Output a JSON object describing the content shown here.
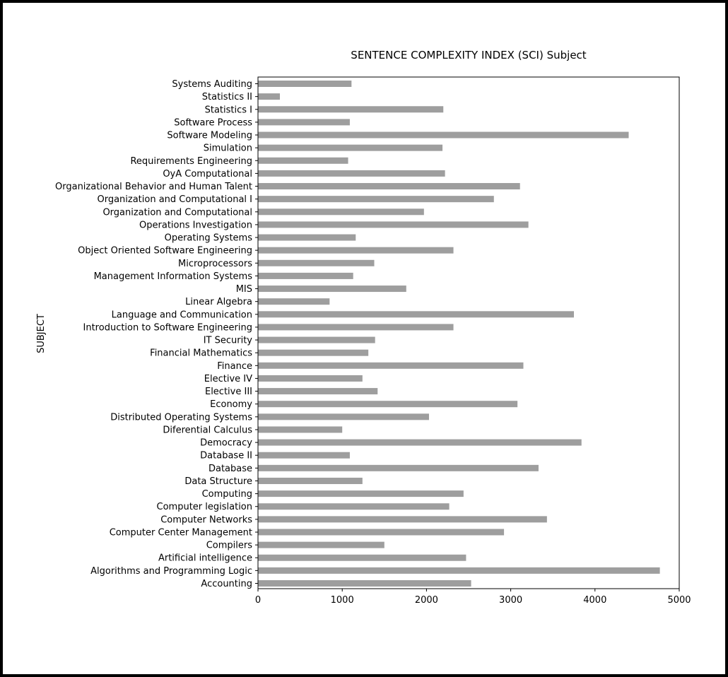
{
  "chart_data": {
    "type": "bar",
    "orientation": "horizontal",
    "title": "SENTENCE COMPLEXITY INDEX (SCI) Subject",
    "xlabel": "",
    "ylabel": "SUBJECT",
    "xlim": [
      0,
      5000
    ],
    "xticks": [
      0,
      1000,
      2000,
      3000,
      4000,
      5000
    ],
    "grid": false,
    "bar_color": "#9e9e9e",
    "categories": [
      "Accounting",
      "Algorithms and Programming Logic",
      "Artificial intelligence",
      "Compilers",
      "Computer Center Management",
      "Computer Networks",
      "Computer legislation",
      "Computing",
      "Data Structure",
      "Database",
      "Database II",
      "Democracy",
      "Diferential Calculus",
      "Distributed Operating Systems",
      "Economy",
      "Elective III",
      "Elective IV",
      "Finance",
      "Financial Mathematics",
      "IT Security",
      "Introduction to Software Engineering",
      "Language and Communication",
      "Linear Algebra",
      "MIS",
      "Management Information Systems",
      "Microprocessors",
      "Object Oriented Software Engineering",
      "Operating Systems",
      "Operations Investigation",
      "Organization and Computational",
      "Organization and Computational I",
      "Organizational Behavior and Human Talent",
      "OyA Computational",
      "Requirements Engineering",
      "Simulation",
      "Software Modeling",
      "Software Process",
      "Statistics I",
      "Statistics II",
      "Systems Auditing"
    ],
    "values": [
      2530,
      4770,
      2470,
      1500,
      2920,
      3430,
      2270,
      2440,
      1240,
      3330,
      1090,
      3840,
      1000,
      2030,
      3080,
      1420,
      1240,
      3150,
      1310,
      1390,
      2320,
      3750,
      850,
      1760,
      1130,
      1380,
      2320,
      1160,
      3210,
      1970,
      2800,
      3110,
      2220,
      1070,
      2190,
      4400,
      1090,
      2200,
      260,
      1110
    ]
  }
}
